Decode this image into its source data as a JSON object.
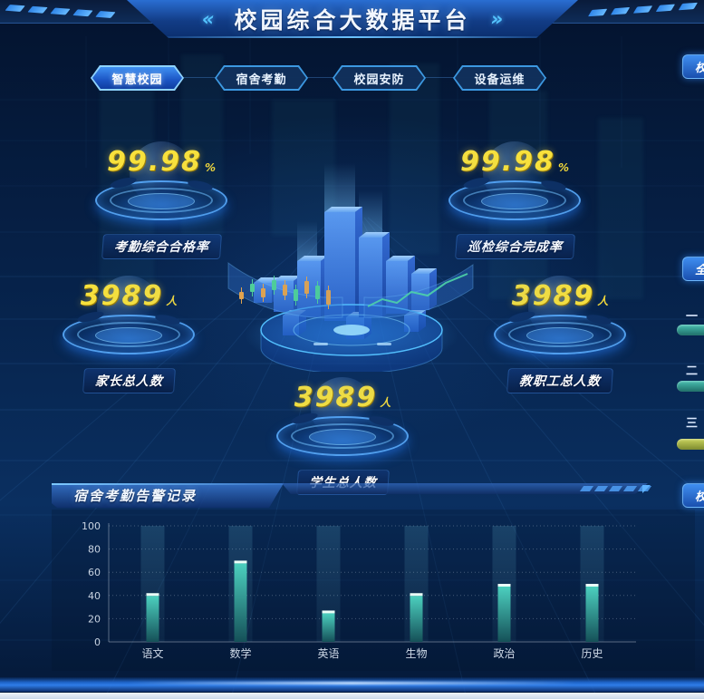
{
  "header": {
    "title": "校园综合大数据平台",
    "left_arrow": "«",
    "right_arrow": "»"
  },
  "tabs": [
    {
      "label": "智慧校园",
      "active": true
    },
    {
      "label": "宿舍考勤",
      "active": false
    },
    {
      "label": "校园安防",
      "active": false
    },
    {
      "label": "设备运维",
      "active": false
    }
  ],
  "kpis": [
    {
      "value": "99.98",
      "unit": "%",
      "label": "考勤综合合格率"
    },
    {
      "value": "99.98",
      "unit": "%",
      "label": "巡检综合完成率"
    },
    {
      "value": "3989",
      "unit": "人",
      "label": "家长总人数"
    },
    {
      "value": "3989",
      "unit": "人",
      "label": "教职工总人数"
    },
    {
      "value": "3989",
      "unit": "人",
      "label": "学生总人数"
    }
  ],
  "alarm_panel": {
    "title": "宿舍考勤告警记录"
  },
  "chart_data": {
    "type": "bar",
    "title": "宿舍考勤告警记录",
    "categories": [
      "语文",
      "数学",
      "英语",
      "生物",
      "政治",
      "历史"
    ],
    "values": [
      42,
      70,
      27,
      42,
      50,
      50
    ],
    "xlabel": "",
    "ylabel": "",
    "ylim": [
      0,
      100
    ],
    "yticks": [
      0,
      20,
      40,
      60,
      80,
      100
    ],
    "grid": "dotted-horizontal",
    "legend": "none",
    "bar_color": "#3fbcae",
    "bar_cap_color": "#eafff8",
    "band_color": "rgba(110,200,230,0.11)"
  },
  "right_edge": {
    "top_badge": "校",
    "mid_badge": "全",
    "bottom_badge": "校",
    "ranking": [
      {
        "label": "一",
        "bar_color_top": "#49c0b2",
        "bar_color_bottom": "#1f6e68"
      },
      {
        "label": "二",
        "bar_color_top": "#49c0b2",
        "bar_color_bottom": "#1f6e68"
      },
      {
        "label": "三",
        "bar_color_top": "#c9d45e",
        "bar_color_bottom": "#7d8a2e"
      }
    ]
  },
  "colors": {
    "accent_cyan": "#49c8ff",
    "number_yellow": "#f8e13c",
    "tab_active_blue": "#1b55c4",
    "bar_teal": "#3fbcae",
    "background_navy": "#062148"
  }
}
